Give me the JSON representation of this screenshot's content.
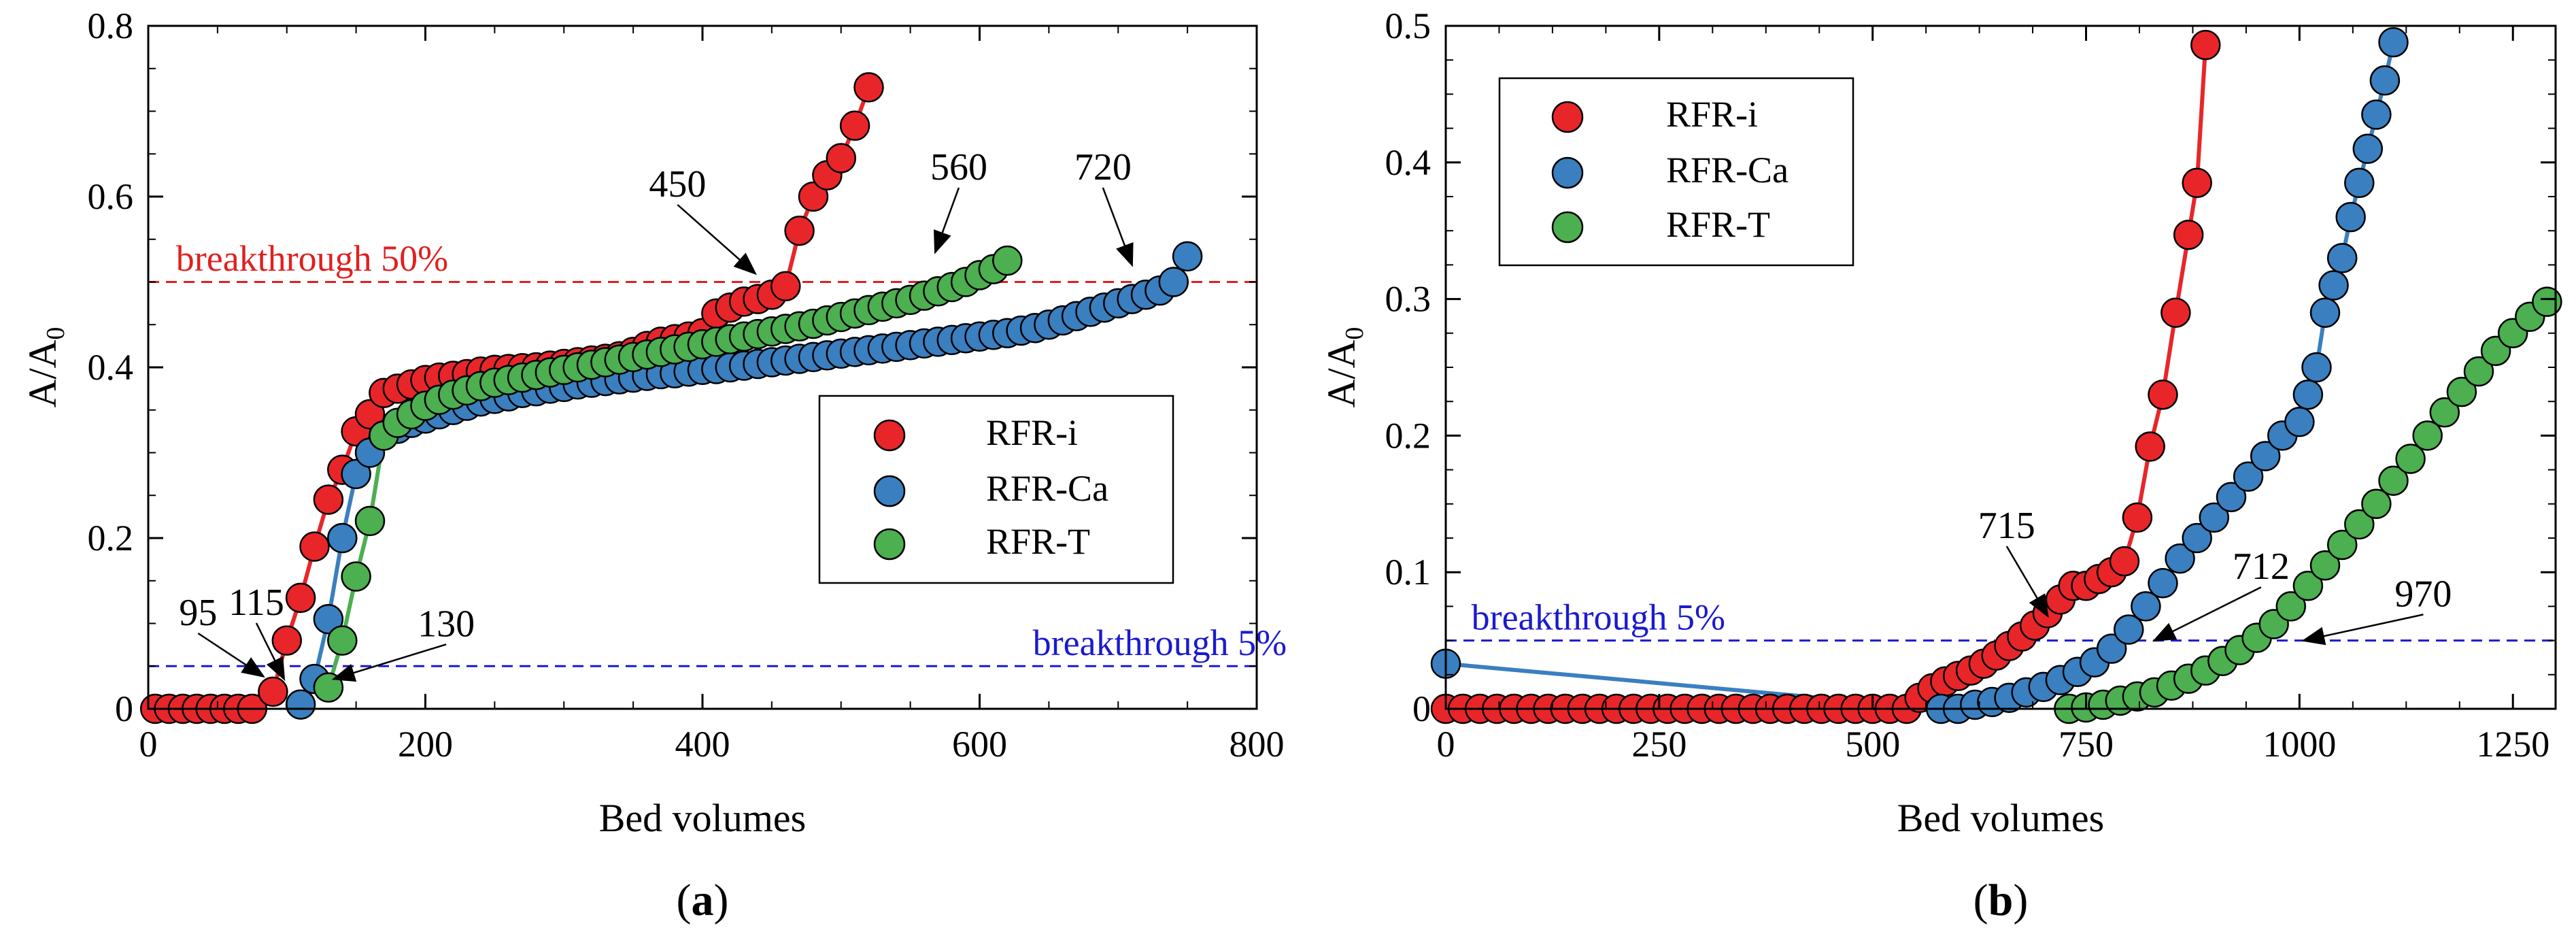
{
  "colors": {
    "red": "#e8262a",
    "blue": "#3a7fc0",
    "green": "#4caf50",
    "ref_red": "#e02020",
    "ref_blue": "#1a1ad0",
    "axis": "#000000"
  },
  "chart_data": [
    {
      "type": "scatter",
      "panel_label": "(a)",
      "panel_letter": "a",
      "xlabel": "Bed volumes",
      "ylabel": "A/A0",
      "ylabel_main": "A/A",
      "ylabel_sub": "0",
      "xlim": [
        0,
        800
      ],
      "ylim": [
        0,
        0.8
      ],
      "xticks": [
        0,
        200,
        400,
        600,
        800
      ],
      "xtick_labels": [
        "0",
        "200",
        "400",
        "600",
        "800"
      ],
      "yticks": [
        0,
        0.2,
        0.4,
        0.6,
        0.8
      ],
      "ytick_labels": [
        "0",
        "0.2",
        "0.4",
        "0.6",
        "0.8"
      ],
      "legend_position": "center-right",
      "series": [
        {
          "name": "RFR-i",
          "color_key": "red",
          "x": [
            5,
            15,
            25,
            35,
            45,
            55,
            65,
            75,
            90,
            100,
            110,
            120,
            130,
            140,
            150,
            160,
            170,
            180,
            190,
            200,
            210,
            220,
            230,
            240,
            250,
            260,
            270,
            280,
            290,
            300,
            310,
            320,
            330,
            340,
            350,
            360,
            370,
            380,
            390,
            400,
            410,
            420,
            430,
            440,
            450,
            460,
            470,
            480,
            490,
            500,
            510,
            520
          ],
          "y": [
            0,
            0,
            0,
            0,
            0,
            0,
            0,
            0,
            0.02,
            0.08,
            0.13,
            0.19,
            0.245,
            0.28,
            0.325,
            0.345,
            0.37,
            0.375,
            0.38,
            0.385,
            0.388,
            0.39,
            0.392,
            0.395,
            0.397,
            0.398,
            0.399,
            0.4,
            0.402,
            0.404,
            0.406,
            0.408,
            0.41,
            0.413,
            0.418,
            0.425,
            0.43,
            0.433,
            0.436,
            0.44,
            0.463,
            0.47,
            0.477,
            0.48,
            0.485,
            0.495,
            0.56,
            0.6,
            0.625,
            0.645,
            0.683,
            0.728
          ]
        },
        {
          "name": "RFR-Ca",
          "color_key": "blue",
          "x": [
            110,
            120,
            130,
            140,
            150,
            160,
            170,
            180,
            190,
            200,
            210,
            220,
            230,
            240,
            250,
            260,
            270,
            280,
            290,
            300,
            310,
            320,
            330,
            340,
            350,
            360,
            370,
            380,
            390,
            400,
            410,
            420,
            430,
            440,
            450,
            460,
            470,
            480,
            490,
            500,
            510,
            520,
            530,
            540,
            550,
            560,
            570,
            580,
            590,
            600,
            610,
            620,
            630,
            640,
            650,
            660,
            670,
            680,
            690,
            700,
            710,
            720,
            730,
            740,
            750
          ],
          "y": [
            0.005,
            0.035,
            0.105,
            0.2,
            0.275,
            0.3,
            0.32,
            0.328,
            0.335,
            0.34,
            0.345,
            0.35,
            0.355,
            0.36,
            0.363,
            0.366,
            0.37,
            0.372,
            0.375,
            0.377,
            0.38,
            0.382,
            0.384,
            0.386,
            0.388,
            0.39,
            0.392,
            0.393,
            0.395,
            0.397,
            0.398,
            0.4,
            0.402,
            0.404,
            0.406,
            0.408,
            0.41,
            0.412,
            0.414,
            0.416,
            0.418,
            0.42,
            0.422,
            0.424,
            0.426,
            0.428,
            0.43,
            0.432,
            0.434,
            0.436,
            0.438,
            0.44,
            0.443,
            0.446,
            0.45,
            0.455,
            0.46,
            0.465,
            0.47,
            0.475,
            0.48,
            0.485,
            0.49,
            0.5,
            0.53
          ]
        },
        {
          "name": "RFR-T",
          "color_key": "green",
          "x": [
            130,
            140,
            150,
            160,
            170,
            180,
            190,
            200,
            210,
            220,
            230,
            240,
            250,
            260,
            270,
            280,
            290,
            300,
            310,
            320,
            330,
            340,
            350,
            360,
            370,
            380,
            390,
            400,
            410,
            420,
            430,
            440,
            450,
            460,
            470,
            480,
            490,
            500,
            510,
            520,
            530,
            540,
            550,
            560,
            570,
            580,
            590,
            600,
            610,
            620
          ],
          "y": [
            0.025,
            0.08,
            0.155,
            0.22,
            0.32,
            0.335,
            0.345,
            0.355,
            0.362,
            0.368,
            0.373,
            0.378,
            0.382,
            0.385,
            0.388,
            0.391,
            0.394,
            0.397,
            0.4,
            0.403,
            0.406,
            0.409,
            0.412,
            0.415,
            0.418,
            0.421,
            0.424,
            0.427,
            0.43,
            0.433,
            0.436,
            0.439,
            0.442,
            0.445,
            0.448,
            0.451,
            0.455,
            0.459,
            0.463,
            0.467,
            0.471,
            0.475,
            0.479,
            0.484,
            0.489,
            0.494,
            0.5,
            0.508,
            0.515,
            0.525
          ]
        }
      ],
      "reference_lines": [
        {
          "label": "breakthrough 50%",
          "y": 0.5,
          "color_key": "ref_red",
          "label_x": 20,
          "label_y": 0.513
        },
        {
          "label": "breakthrough 5%",
          "y": 0.05,
          "color_key": "ref_blue",
          "label_x": 730,
          "label_y": 0.063
        }
      ],
      "annotations": [
        {
          "text": "95",
          "text_x": 36,
          "text_y": 0.098,
          "tip_x": 83,
          "tip_y": 0.038
        },
        {
          "text": "115",
          "text_x": 78,
          "text_y": 0.11,
          "tip_x": 98,
          "tip_y": 0.035
        },
        {
          "text": "130",
          "text_x": 215,
          "text_y": 0.085,
          "tip_x": 134,
          "tip_y": 0.035
        },
        {
          "text": "450",
          "text_x": 382,
          "text_y": 0.6,
          "tip_x": 438,
          "tip_y": 0.51
        },
        {
          "text": "560",
          "text_x": 585,
          "text_y": 0.62,
          "tip_x": 568,
          "tip_y": 0.535
        },
        {
          "text": "720",
          "text_x": 689,
          "text_y": 0.62,
          "tip_x": 710,
          "tip_y": 0.52
        }
      ]
    },
    {
      "type": "scatter",
      "panel_label": "(b)",
      "panel_letter": "b",
      "xlabel": "Bed volumes",
      "ylabel": "A/A0",
      "ylabel_main": "A/A",
      "ylabel_sub": "0",
      "xlim": [
        0,
        1300
      ],
      "ylim": [
        0,
        0.5
      ],
      "xticks": [
        0,
        250,
        500,
        750,
        1000,
        1250
      ],
      "xtick_labels": [
        "0",
        "250",
        "500",
        "750",
        "1000",
        "1250"
      ],
      "yticks": [
        0,
        0.1,
        0.2,
        0.3,
        0.4,
        0.5
      ],
      "ytick_labels": [
        "0",
        "0.1",
        "0.2",
        "0.3",
        "0.4",
        "0.5"
      ],
      "legend_position": "top-left",
      "series": [
        {
          "name": "RFR-i",
          "color_key": "red",
          "x": [
            0,
            20,
            40,
            60,
            80,
            100,
            120,
            140,
            160,
            180,
            200,
            220,
            240,
            260,
            280,
            300,
            320,
            340,
            360,
            380,
            400,
            420,
            440,
            460,
            480,
            500,
            520,
            540,
            555,
            570,
            585,
            600,
            615,
            630,
            645,
            660,
            675,
            690,
            705,
            720,
            735,
            750,
            765,
            780,
            795,
            810,
            825,
            840,
            855,
            870,
            880,
            890
          ],
          "y": [
            0,
            0,
            0,
            0,
            0,
            0,
            0,
            0,
            0,
            0,
            0,
            0,
            0,
            0,
            0,
            0,
            0,
            0,
            0,
            0,
            0,
            0,
            0,
            0,
            0,
            0,
            0,
            0,
            0.008,
            0.015,
            0.02,
            0.024,
            0.028,
            0.033,
            0.039,
            0.046,
            0.053,
            0.061,
            0.07,
            0.08,
            0.09,
            0.09,
            0.095,
            0.1,
            0.108,
            0.14,
            0.192,
            0.23,
            0.29,
            0.347,
            0.385,
            0.486
          ]
        },
        {
          "name": "RFR-Ca",
          "color_key": "blue",
          "x": [
            0,
            580,
            600,
            620,
            640,
            660,
            680,
            700,
            720,
            740,
            760,
            780,
            800,
            820,
            840,
            860,
            880,
            900,
            920,
            940,
            960,
            980,
            1000,
            1010,
            1020,
            1030,
            1040,
            1050,
            1060,
            1070,
            1080,
            1090,
            1100,
            1110
          ],
          "y": [
            0.033,
            0,
            0,
            0.003,
            0.005,
            0.008,
            0.012,
            0.016,
            0.021,
            0.027,
            0.034,
            0.044,
            0.058,
            0.075,
            0.092,
            0.11,
            0.125,
            0.14,
            0.155,
            0.17,
            0.185,
            0.2,
            0.21,
            0.23,
            0.25,
            0.29,
            0.31,
            0.33,
            0.36,
            0.385,
            0.41,
            0.435,
            0.46,
            0.488
          ]
        },
        {
          "name": "RFR-T",
          "color_key": "green",
          "x": [
            730,
            750,
            770,
            790,
            810,
            830,
            850,
            870,
            890,
            910,
            930,
            950,
            970,
            990,
            1010,
            1030,
            1050,
            1070,
            1090,
            1110,
            1130,
            1150,
            1170,
            1190,
            1210,
            1230,
            1250,
            1270,
            1290
          ],
          "y": [
            0,
            0.001,
            0.003,
            0.006,
            0.009,
            0.012,
            0.017,
            0.022,
            0.028,
            0.035,
            0.043,
            0.052,
            0.062,
            0.075,
            0.09,
            0.105,
            0.12,
            0.135,
            0.15,
            0.167,
            0.183,
            0.2,
            0.217,
            0.232,
            0.247,
            0.262,
            0.275,
            0.287,
            0.298
          ]
        }
      ],
      "reference_lines": [
        {
          "label": "breakthrough 5%",
          "y": 0.05,
          "color_key": "ref_blue",
          "label_x": 30,
          "label_y": 0.058
        }
      ],
      "annotations": [
        {
          "text": "715",
          "text_x": 657,
          "text_y": 0.125,
          "tip_x": 705,
          "tip_y": 0.068
        },
        {
          "text": "712",
          "text_x": 955,
          "text_y": 0.095,
          "tip_x": 830,
          "tip_y": 0.05
        },
        {
          "text": "970",
          "text_x": 1145,
          "text_y": 0.075,
          "tip_x": 1005,
          "tip_y": 0.05
        }
      ]
    }
  ]
}
